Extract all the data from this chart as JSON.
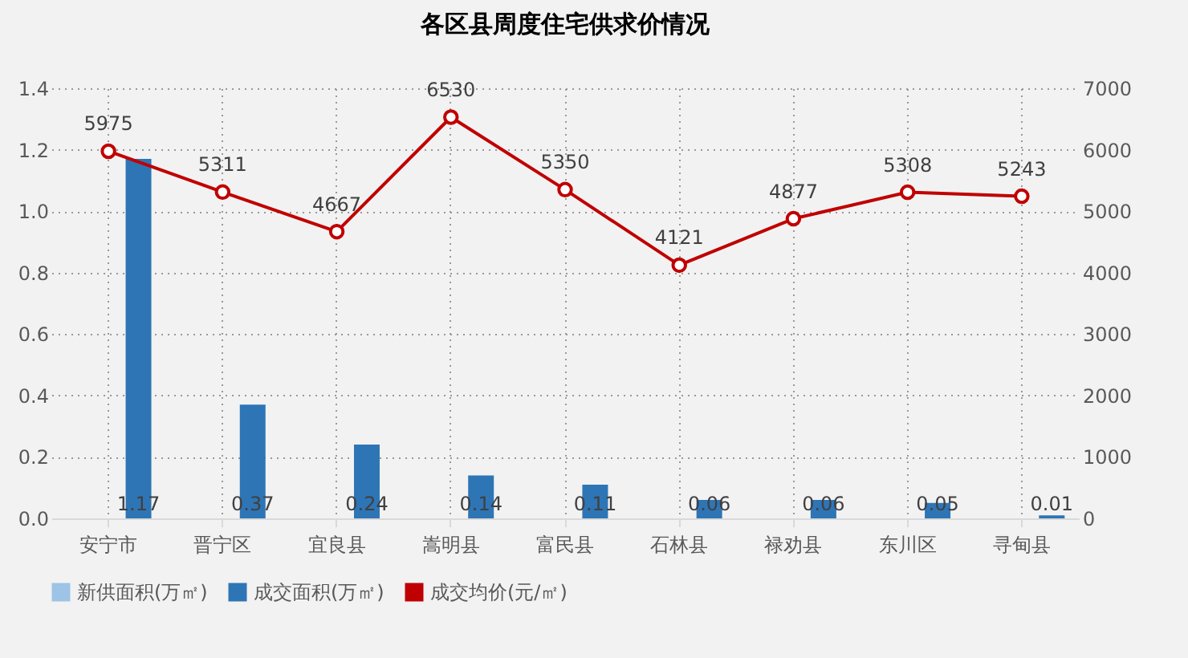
{
  "chart_data": {
    "type": "bar",
    "title": "各区县周度住宅供求价情况",
    "categories": [
      "安宁市",
      "晋宁区",
      "宜良县",
      "嵩明县",
      "富民县",
      "石林县",
      "禄劝县",
      "东川区",
      "寻甸县"
    ],
    "series": [
      {
        "name": "新供面积(万㎡)",
        "color": "#9dc3e6",
        "values": [
          null,
          null,
          null,
          null,
          null,
          null,
          null,
          null,
          null
        ]
      },
      {
        "name": "成交面积(万㎡)",
        "color": "#2e75b6",
        "values": [
          1.17,
          0.37,
          0.24,
          0.14,
          0.11,
          0.06,
          0.06,
          0.05,
          0.01
        ]
      },
      {
        "name": "成交均价(元/㎡)",
        "type": "line",
        "axis": "y2",
        "color": "#c00000",
        "values": [
          5975,
          5311,
          4667,
          6530,
          5350,
          4121,
          4877,
          5308,
          5243
        ]
      }
    ],
    "ylim": [
      0,
      1.4
    ],
    "yticks": [
      {
        "value": 0,
        "label": "0.0"
      },
      {
        "value": 0.2,
        "label": "0.2"
      },
      {
        "value": 0.4,
        "label": "0.4"
      },
      {
        "value": 0.6,
        "label": "0.6"
      },
      {
        "value": 0.8,
        "label": "0.8"
      },
      {
        "value": 1,
        "label": "1.0"
      },
      {
        "value": 1.2,
        "label": "1.2"
      },
      {
        "value": 1.4,
        "label": "1.4"
      }
    ],
    "y2lim": [
      0,
      7000
    ],
    "y2ticks": [
      0,
      1000,
      2000,
      3000,
      4000,
      5000,
      6000,
      7000
    ],
    "data_labels": true,
    "grid": true,
    "legend": "bottom",
    "marker": "circle"
  }
}
